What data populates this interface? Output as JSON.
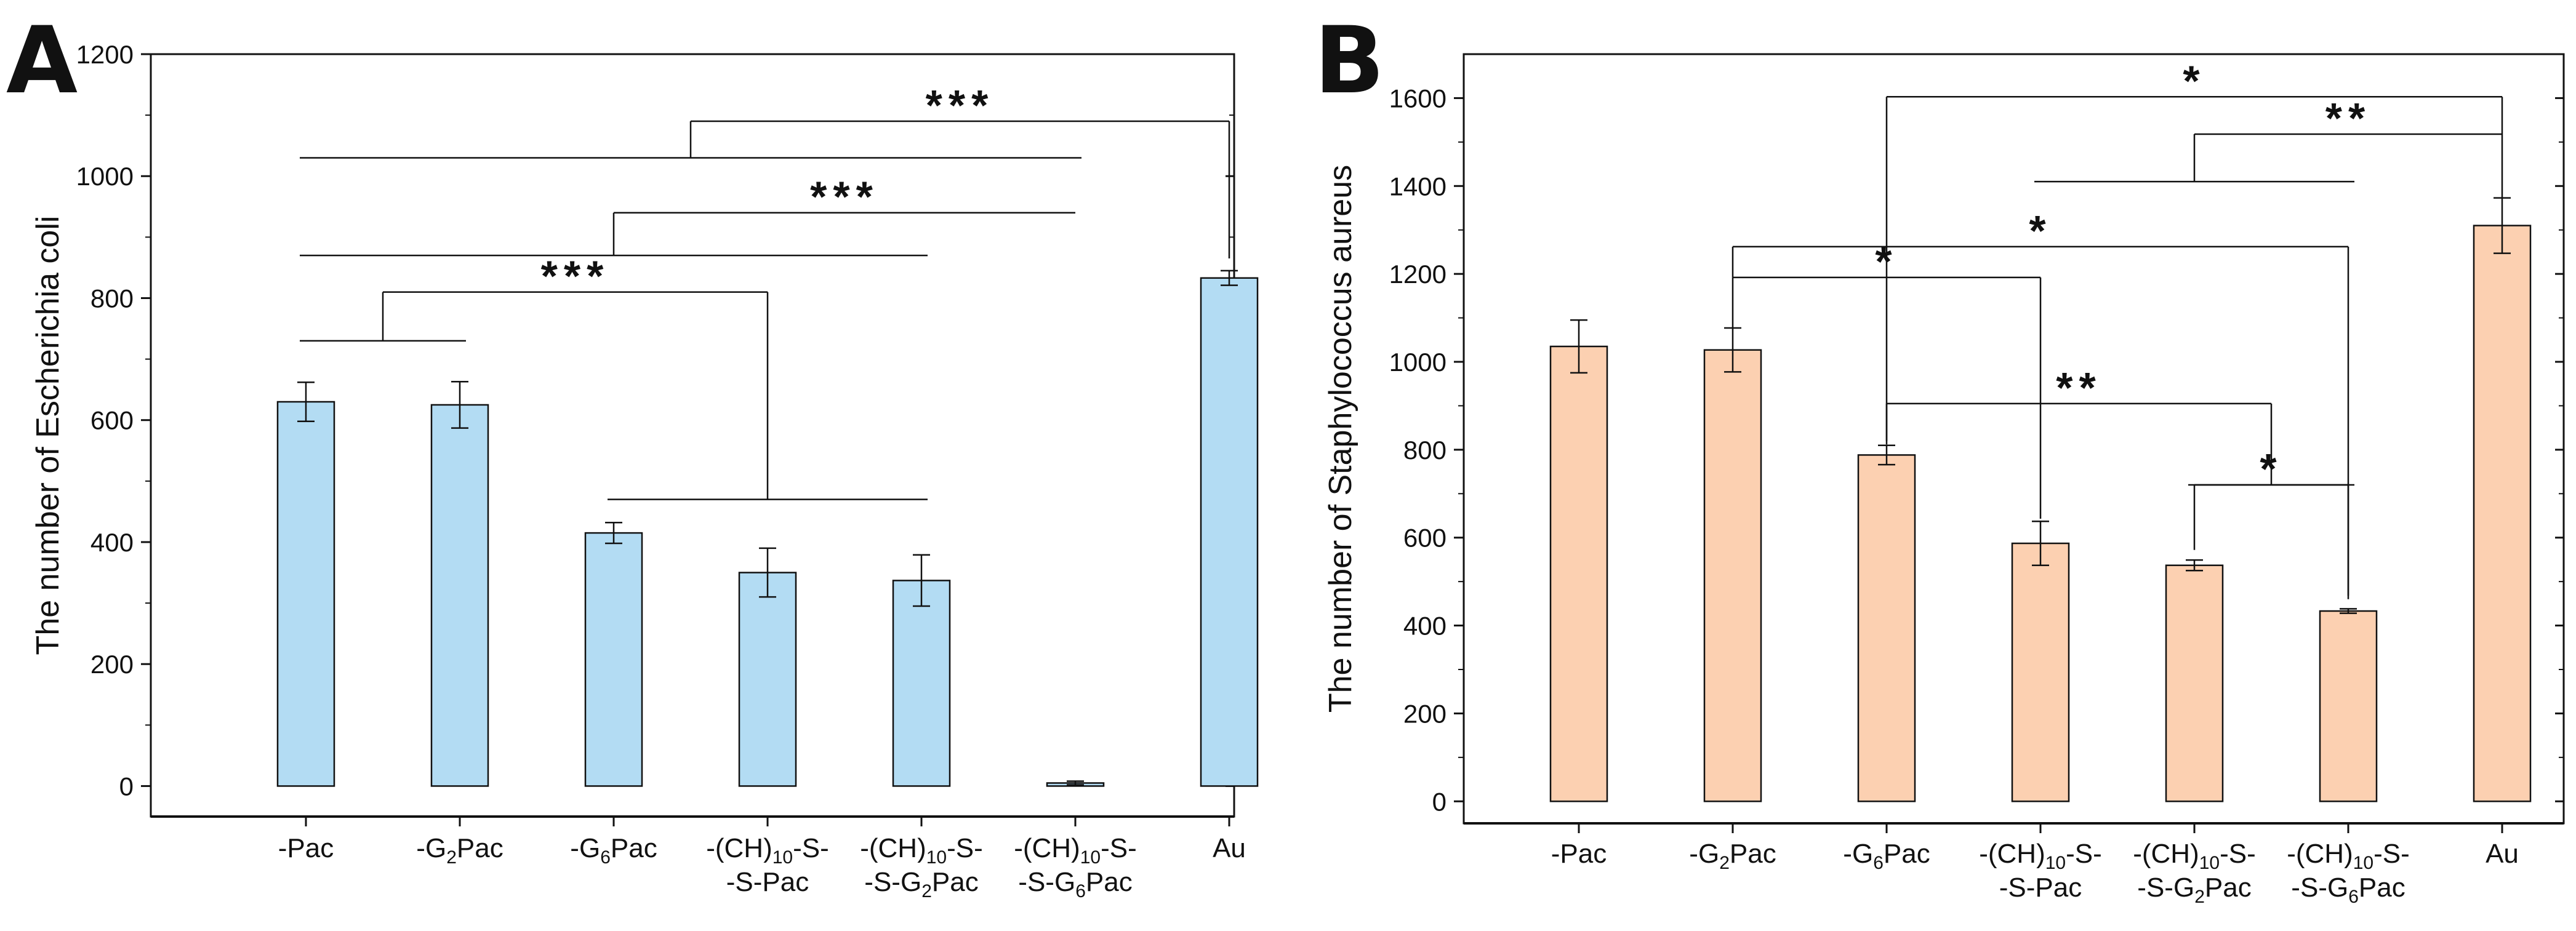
{
  "chart_data": [
    {
      "panel": "A",
      "type": "bar",
      "ylabel": "The number of Escherichia coli",
      "ylim": [
        -50,
        1200
      ],
      "yticks": [
        0,
        200,
        400,
        600,
        800,
        1000,
        1200
      ],
      "categories": [
        {
          "name": "-Pac",
          "lines": [
            [
              {
                "t": "-Pac"
              }
            ]
          ]
        },
        {
          "name": "-G2Pac",
          "lines": [
            [
              {
                "t": "-G"
              },
              {
                "t": "2",
                "sub": true
              },
              {
                "t": "Pac"
              }
            ]
          ]
        },
        {
          "name": "-G6Pac",
          "lines": [
            [
              {
                "t": "-G"
              },
              {
                "t": "6",
                "sub": true
              },
              {
                "t": "Pac"
              }
            ]
          ]
        },
        {
          "name": "-(CH)10-S-S-Pac",
          "lines": [
            [
              {
                "t": "-(CH)"
              },
              {
                "t": "10",
                "sub": true
              },
              {
                "t": "-S-"
              }
            ],
            [
              {
                "t": "-S-Pac"
              }
            ]
          ]
        },
        {
          "name": "-(CH)10-S-S-G2Pac",
          "lines": [
            [
              {
                "t": "-(CH)"
              },
              {
                "t": "10",
                "sub": true
              },
              {
                "t": "-S-"
              }
            ],
            [
              {
                "t": "-S-G"
              },
              {
                "t": "2",
                "sub": true
              },
              {
                "t": "Pac"
              }
            ]
          ]
        },
        {
          "name": "-(CH)10-S-S-G6Pac",
          "lines": [
            [
              {
                "t": "-(CH)"
              },
              {
                "t": "10",
                "sub": true
              },
              {
                "t": "-S-"
              }
            ],
            [
              {
                "t": "-S-G"
              },
              {
                "t": "6",
                "sub": true
              },
              {
                "t": "Pac"
              }
            ]
          ]
        },
        {
          "name": "Au",
          "lines": [
            [
              {
                "t": "Au"
              }
            ]
          ]
        }
      ],
      "values": [
        630,
        625,
        415,
        350,
        337,
        5,
        833
      ],
      "errors": [
        32,
        38,
        17,
        40,
        42,
        3,
        12
      ],
      "bar_color": "#b3dcf3",
      "significance": [
        {
          "label": "***",
          "group_left": [
            0,
            1
          ],
          "group_right": [
            2,
            3,
            4
          ],
          "left_y": 730,
          "right_y": 470,
          "top_y": 810
        },
        {
          "label": "***",
          "group_left": [
            0,
            1,
            2,
            3,
            4
          ],
          "group_right": [
            5
          ],
          "left_y": 870,
          "right_y": 940,
          "top_y": 940
        },
        {
          "label": "***",
          "group_left": [
            0,
            1,
            2,
            3,
            4,
            5
          ],
          "group_right": [
            6
          ],
          "left_y": 1030,
          "right_y": 865,
          "top_y": 1090
        }
      ]
    },
    {
      "panel": "B",
      "type": "bar",
      "ylabel": "The number of Staphylococcus aureus",
      "ylim": [
        -50,
        1700
      ],
      "yticks": [
        0,
        200,
        400,
        600,
        800,
        1000,
        1200,
        1400,
        1600
      ],
      "categories": [
        {
          "name": "-Pac",
          "lines": [
            [
              {
                "t": "-Pac"
              }
            ]
          ]
        },
        {
          "name": "-G2Pac",
          "lines": [
            [
              {
                "t": "-G"
              },
              {
                "t": "2",
                "sub": true
              },
              {
                "t": "Pac"
              }
            ]
          ]
        },
        {
          "name": "-G6Pac",
          "lines": [
            [
              {
                "t": "-G"
              },
              {
                "t": "6",
                "sub": true
              },
              {
                "t": "Pac"
              }
            ]
          ]
        },
        {
          "name": "-(CH)10-S-S-Pac",
          "lines": [
            [
              {
                "t": "-(CH)"
              },
              {
                "t": "10",
                "sub": true
              },
              {
                "t": "-S-"
              }
            ],
            [
              {
                "t": "-S-Pac"
              }
            ]
          ]
        },
        {
          "name": "-(CH)10-S-S-G2Pac",
          "lines": [
            [
              {
                "t": "-(CH)"
              },
              {
                "t": "10",
                "sub": true
              },
              {
                "t": "-S-"
              }
            ],
            [
              {
                "t": "-S-G"
              },
              {
                "t": "2",
                "sub": true
              },
              {
                "t": "Pac"
              }
            ]
          ]
        },
        {
          "name": "-(CH)10-S-S-G6Pac",
          "lines": [
            [
              {
                "t": "-(CH)"
              },
              {
                "t": "10",
                "sub": true
              },
              {
                "t": "-S-"
              }
            ],
            [
              {
                "t": "-S-G"
              },
              {
                "t": "6",
                "sub": true
              },
              {
                "t": "Pac"
              }
            ]
          ]
        },
        {
          "name": "Au",
          "lines": [
            [
              {
                "t": "Au"
              }
            ]
          ]
        }
      ],
      "values": [
        1035,
        1027,
        788,
        587,
        537,
        433,
        1310
      ],
      "errors": [
        60,
        50,
        22,
        50,
        12,
        5,
        63
      ],
      "bar_color": "#fcd0b1",
      "significance": [
        {
          "label": "*",
          "group_left": [
            4
          ],
          "group_right": [
            5
          ],
          "left_y": 572,
          "right_y": 468,
          "top_y": 720
        },
        {
          "label": "**",
          "group_left": [
            2
          ],
          "group_right": [
            4,
            5
          ],
          "left_y": 812,
          "right_y": 720,
          "top_y": 905
        },
        {
          "label": "*",
          "group_left": [
            1
          ],
          "group_right": [
            3
          ],
          "left_y": 1078,
          "right_y": 643,
          "top_y": 1192
        },
        {
          "label": "*",
          "group_left": [
            1
          ],
          "group_right": [
            5
          ],
          "left_y": 1192,
          "right_y": 460,
          "top_y": 1262
        },
        {
          "label": "**",
          "group_left": [
            3,
            4,
            5
          ],
          "group_right": [
            6
          ],
          "left_y": 1410,
          "right_y": 1372,
          "top_y": 1518
        },
        {
          "label": "*",
          "group_left": [
            2
          ],
          "group_right": [
            6
          ],
          "left_y": 820,
          "right_y": 1518,
          "top_y": 1603
        }
      ]
    }
  ]
}
